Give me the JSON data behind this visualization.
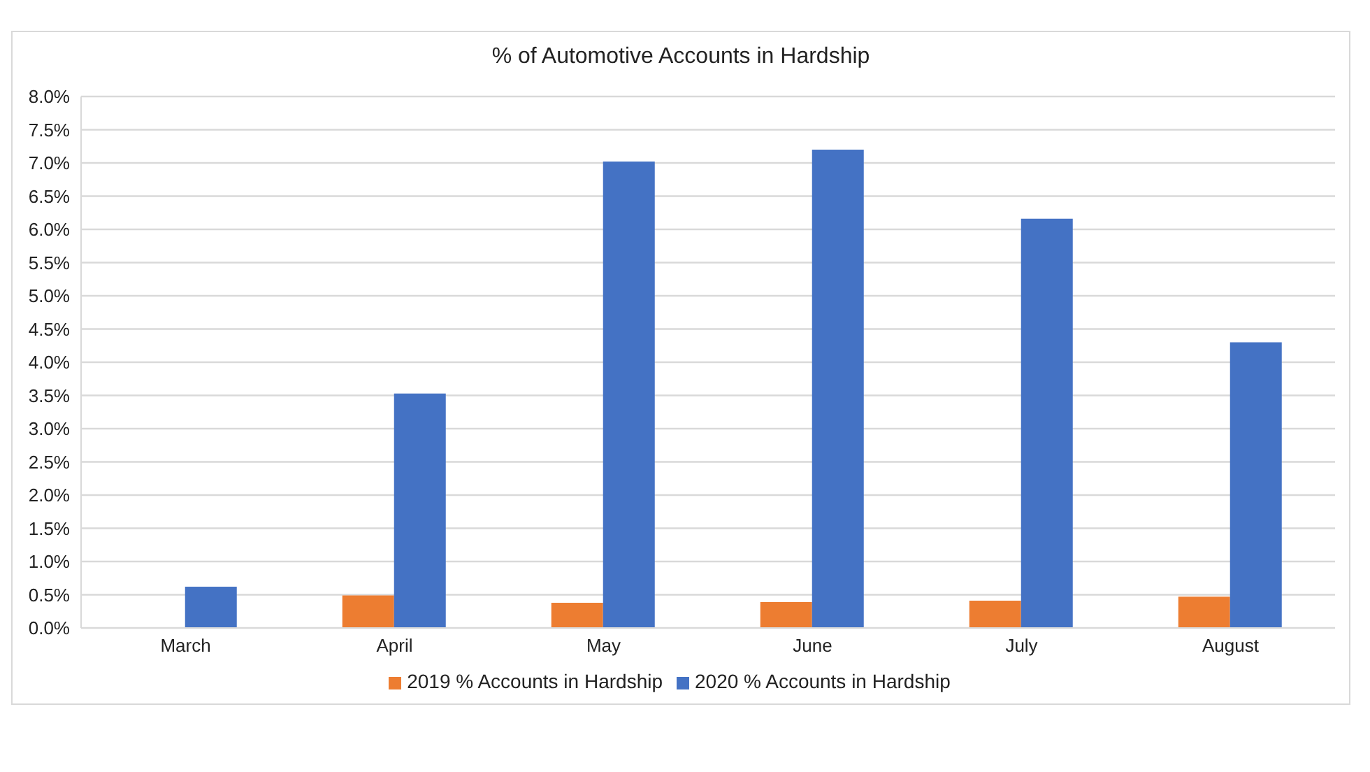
{
  "chart_data": {
    "type": "bar",
    "title": "% of Automotive Accounts in Hardship",
    "categories": [
      "March",
      "April",
      "May",
      "June",
      "July",
      "August"
    ],
    "series": [
      {
        "name": "2019 % Accounts in Hardship",
        "color": "#ed7d31",
        "values": [
          null,
          0.49,
          0.38,
          0.39,
          0.41,
          0.47
        ]
      },
      {
        "name": "2020 % Accounts in Hardship",
        "color": "#4472c4",
        "values": [
          0.62,
          3.53,
          7.02,
          7.2,
          6.16,
          4.3
        ]
      }
    ],
    "ylim": [
      0,
      8
    ],
    "yticks": [
      {
        "value": 0,
        "label": "0.0%"
      },
      {
        "value": 0.5,
        "label": "0.5%"
      },
      {
        "value": 1,
        "label": "1.0%"
      },
      {
        "value": 1.5,
        "label": "1.5%"
      },
      {
        "value": 2,
        "label": "2.0%"
      },
      {
        "value": 2.5,
        "label": "2.5%"
      },
      {
        "value": 3,
        "label": "3.0%"
      },
      {
        "value": 3.5,
        "label": "3.5%"
      },
      {
        "value": 4,
        "label": "4.0%"
      },
      {
        "value": 4.5,
        "label": "4.5%"
      },
      {
        "value": 5,
        "label": "5.0%"
      },
      {
        "value": 5.5,
        "label": "5.5%"
      },
      {
        "value": 6,
        "label": "6.0%"
      },
      {
        "value": 6.5,
        "label": "6.5%"
      },
      {
        "value": 7,
        "label": "7.0%"
      },
      {
        "value": 7.5,
        "label": "7.5%"
      },
      {
        "value": 8,
        "label": "8.0%"
      }
    ],
    "grid": "y",
    "legend": "bottom"
  }
}
